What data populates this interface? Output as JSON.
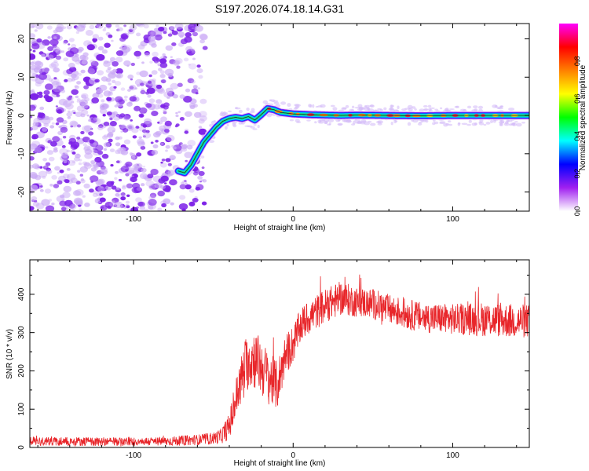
{
  "figure_title": "S197.2026.074.18.14.G31",
  "chart_data": [
    {
      "type": "heatmap",
      "title": "S197.2026.074.18.14.G31",
      "xlabel": "Height of straight line (km)",
      "ylabel": "Frequency (Hz)",
      "xlim": [
        -165,
        148
      ],
      "ylim": [
        -25,
        24
      ],
      "xticks": [
        -100,
        0,
        100
      ],
      "yticks": [
        -20,
        -10,
        0,
        10,
        20
      ],
      "xtick_labels": [
        "-100",
        "0",
        "100"
      ],
      "ytick_labels": [
        "-20",
        "-10",
        "0",
        "10",
        "20"
      ],
      "colorbar": {
        "label": "Normalized spectral amplitude",
        "range": [
          0,
          1
        ],
        "ticks": [
          0.0,
          0.2,
          0.4,
          0.6,
          0.8
        ],
        "tick_labels": [
          "0.0",
          "0.2",
          "0.4",
          "0.6",
          "0.8"
        ],
        "colormap": [
          "#ffffff",
          "#a020f0",
          "#0000ff",
          "#00ffff",
          "#00ff00",
          "#ffff00",
          "#ff8000",
          "#ff0000",
          "#ff00ff"
        ]
      },
      "ridge": {
        "x": [
          -72,
          -68,
          -64,
          -60,
          -56,
          -52,
          -48,
          -44,
          -40,
          -36,
          -32,
          -28,
          -24,
          -20,
          -16,
          -12,
          -8,
          -4,
          0,
          10,
          20,
          30,
          40,
          60,
          80,
          100,
          120,
          148
        ],
        "y": [
          -14.5,
          -15,
          -13,
          -10,
          -7,
          -5,
          -3,
          -1.5,
          -0.8,
          -0.5,
          -0.8,
          -0.3,
          -1.2,
          0.2,
          1.8,
          1.5,
          0.8,
          0.6,
          0.4,
          0.2,
          0.1,
          0.0,
          0.1,
          0.0,
          -0.1,
          0.0,
          0.0,
          0.0
        ]
      },
      "noise_region_x": [
        -165,
        -55
      ],
      "noise_color": "#7a1fe0"
    },
    {
      "type": "line",
      "xlabel": "Height of straight line (km)",
      "ylabel": "SNR (10 * v/v)",
      "xlim": [
        -165,
        148
      ],
      "ylim": [
        0,
        490
      ],
      "xticks": [
        -100,
        0,
        100
      ],
      "yticks": [
        0,
        100,
        200,
        300,
        400
      ],
      "xtick_labels": [
        "-100",
        "0",
        "100"
      ],
      "ytick_labels": [
        "0",
        "100",
        "200",
        "300",
        "400"
      ],
      "series": [
        {
          "name": "SNR",
          "color": "#e8262a",
          "trend_x": [
            -165,
            -140,
            -110,
            -80,
            -60,
            -50,
            -45,
            -40,
            -35,
            -30,
            -25,
            -20,
            -15,
            -10,
            -5,
            0,
            5,
            10,
            20,
            30,
            40,
            50,
            60,
            80,
            100,
            120,
            140,
            148
          ],
          "trend_y": [
            17,
            16,
            15,
            16,
            20,
            24,
            30,
            55,
            140,
            215,
            235,
            210,
            180,
            160,
            240,
            270,
            320,
            340,
            370,
            390,
            380,
            375,
            360,
            340,
            335,
            335,
            330,
            330
          ],
          "noise_amplitude": [
            12,
            12,
            11,
            12,
            14,
            16,
            20,
            35,
            60,
            70,
            80,
            75,
            70,
            65,
            55,
            50,
            45,
            45,
            45,
            45,
            40,
            40,
            40,
            40,
            40,
            45,
            45,
            45
          ]
        }
      ]
    }
  ]
}
